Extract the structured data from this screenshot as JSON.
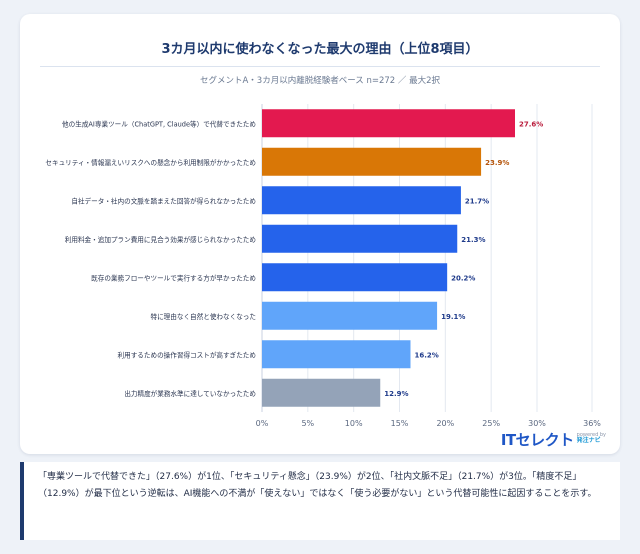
{
  "chart_data": {
    "type": "bar",
    "orientation": "horizontal",
    "title": "3カ月以内に使わなくなった最大の理由（上位8項目）",
    "subtitle": "セグメントA・3カ月以内離脱経験者ベース n=272 ／ 最大2択",
    "categories": [
      "他の生成AI専業ツール（ChatGPT, Claude等）で代替できたため",
      "セキュリティ・情報漏えいリスクへの懸念から利用制限がかかったため",
      "自社データ・社内の文脈を踏まえた回答が得られなかったため",
      "利用料金・追加プラン費用に見合う効果が感じられなかったため",
      "既存の業務フローやツールで実行する方が早かったため",
      "特に理由なく自然と使わなくなった",
      "利用するための操作習得コストが高すぎたため",
      "出力精度が業務水準に達していなかったため"
    ],
    "values": [
      27.6,
      23.9,
      21.7,
      21.3,
      20.2,
      19.1,
      16.2,
      12.9
    ],
    "value_labels": [
      "27.6%",
      "23.9%",
      "21.7%",
      "21.3%",
      "20.2%",
      "19.1%",
      "16.2%",
      "12.9%"
    ],
    "colors": [
      "#e3194f",
      "#d97706",
      "#2563eb",
      "#2563eb",
      "#2563eb",
      "#60a5fa",
      "#60a5fa",
      "#94a3b8"
    ],
    "label_colors": [
      "#b91c3c",
      "#b45309",
      "#1e3a8a",
      "#1e3a8a",
      "#1e3a8a",
      "#1e3a8a",
      "#1e3a8a",
      "#1e3a8a"
    ],
    "xlim": [
      0,
      36
    ],
    "xticks": [
      0,
      5,
      10,
      15,
      20,
      25,
      30,
      36
    ],
    "xtick_labels": [
      "0%",
      "5%",
      "10%",
      "15%",
      "20%",
      "25%",
      "30%",
      "36%"
    ],
    "grid": true
  },
  "logo": {
    "main": "ITセレクト",
    "powered": "powered by",
    "brand": "発注ナビ"
  },
  "note": {
    "text": "「専業ツールで代替できた」（27.6%）が1位、「セキュリティ懸念」（23.9%）が2位、「社内文脈不足」（21.7%）が3位。「精度不足」（12.9%）が最下位という逆転は、AI機能への不満が「使えない」ではなく「使う必要がない」という代替可能性に起因することを示す。"
  }
}
